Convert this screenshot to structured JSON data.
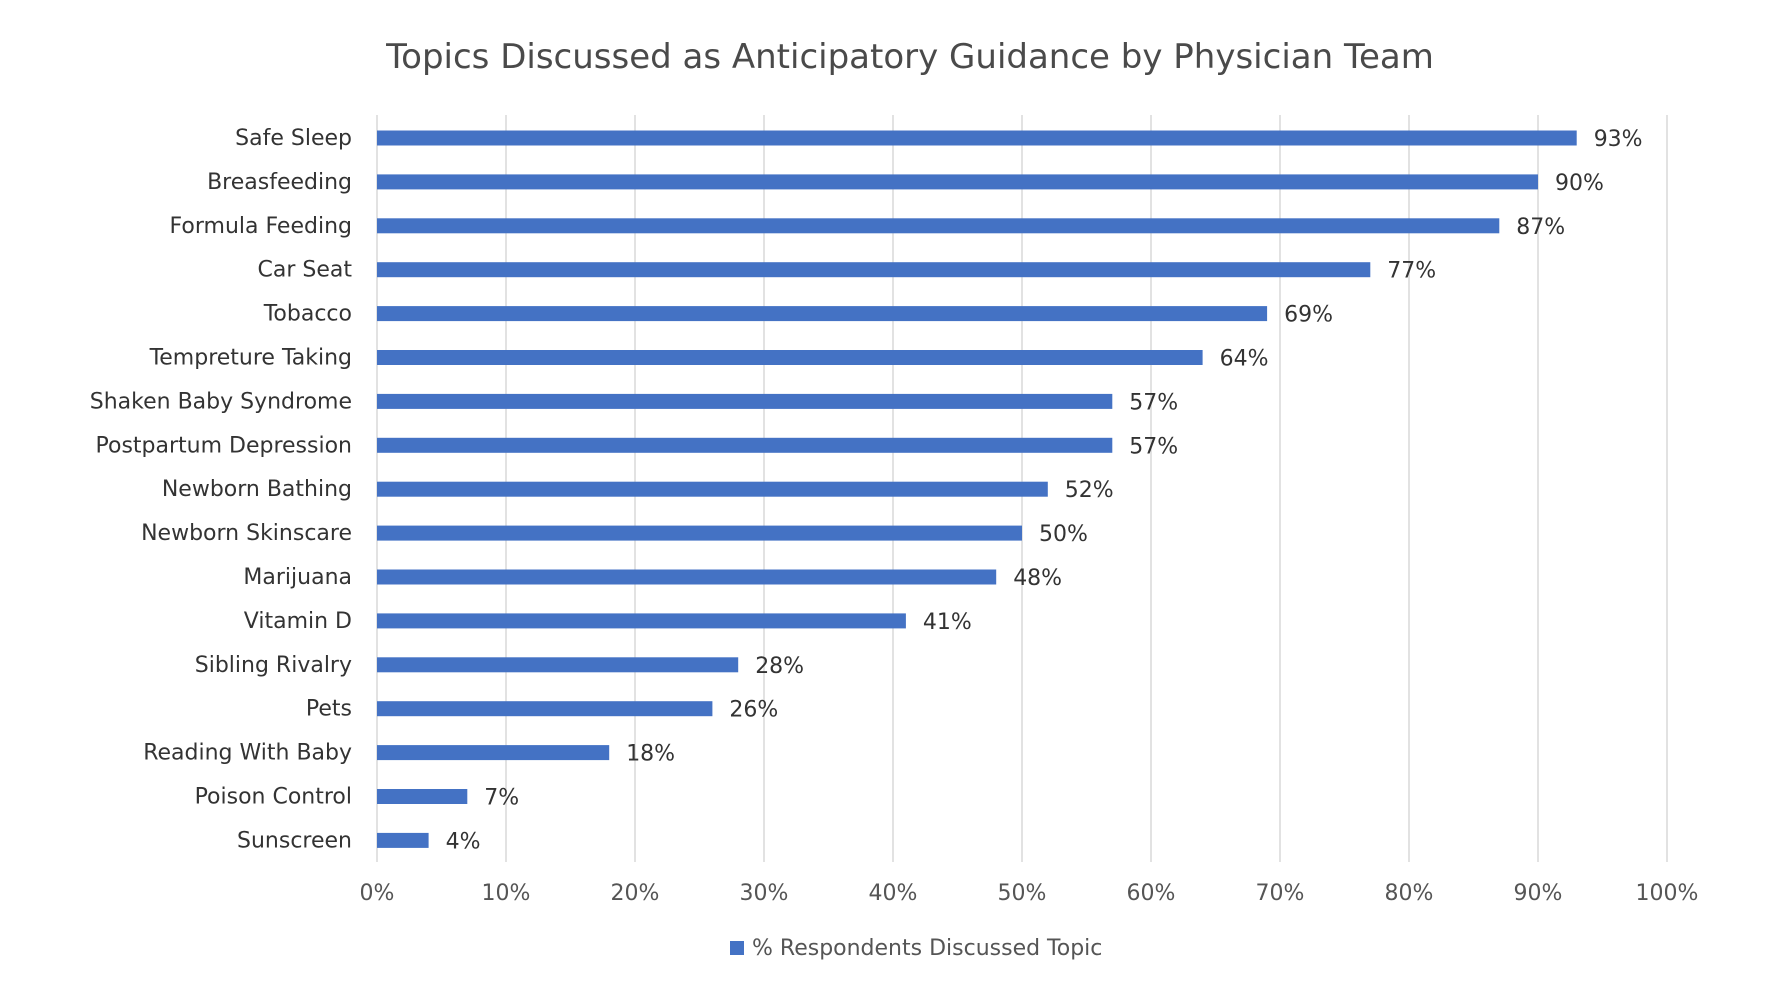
{
  "chart_data": {
    "type": "bar",
    "orientation": "horizontal",
    "title": "Topics Discussed as Anticipatory Guidance by Physician Team",
    "xlabel": "",
    "ylabel": "",
    "xlim": [
      0,
      100
    ],
    "ticks": [
      "0%",
      "10%",
      "20%",
      "30%",
      "40%",
      "50%",
      "60%",
      "70%",
      "80%",
      "90%",
      "100%"
    ],
    "grid": true,
    "legend_position": "bottom",
    "bar_color": "#4472c4",
    "categories": [
      "Safe Sleep",
      "Breasfeeding",
      "Formula Feeding",
      "Car Seat",
      "Tobacco",
      "Tempreture Taking",
      "Shaken Baby Syndrome",
      "Postpartum Depression",
      "Newborn Bathing",
      "Newborn Skinscare",
      "Marijuana",
      "Vitamin D",
      "Sibling Rivalry",
      "Pets",
      "Reading With Baby",
      "Poison Control",
      "Sunscreen"
    ],
    "series": [
      {
        "name": "% Respondents Discussed Topic",
        "values": [
          93,
          90,
          87,
          77,
          69,
          64,
          57,
          57,
          52,
          50,
          48,
          41,
          28,
          26,
          18,
          7,
          4
        ],
        "data_labels": [
          "93%",
          "90%",
          "87%",
          "77%",
          "69%",
          "64%",
          "57%",
          "57%",
          "52%",
          "50%",
          "48%",
          "41%",
          "28%",
          "26%",
          "18%",
          "7%",
          "4%"
        ]
      }
    ]
  }
}
